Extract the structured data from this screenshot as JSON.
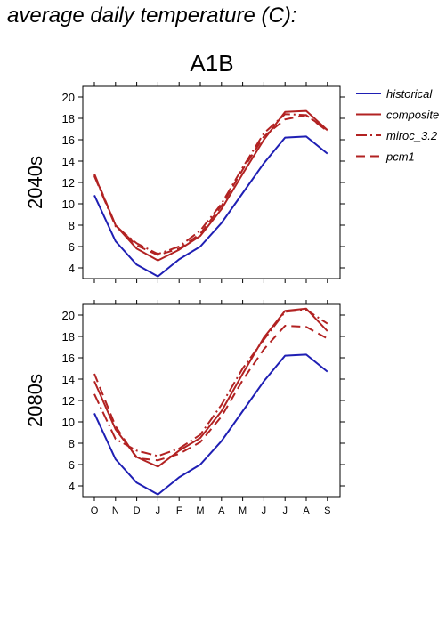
{
  "page": {
    "title": "average daily temperature (C):"
  },
  "chart_data": {
    "type": "line",
    "title": "A1B",
    "categories": [
      "O",
      "N",
      "D",
      "J",
      "F",
      "M",
      "A",
      "M",
      "J",
      "J",
      "A",
      "S"
    ],
    "ylim": [
      3,
      21
    ],
    "yticks": [
      4,
      6,
      8,
      10,
      12,
      14,
      16,
      18,
      20
    ],
    "legend": {
      "placement": "right",
      "entries": [
        {
          "name": "historical",
          "color": "#1f1fb4",
          "dash": "solid"
        },
        {
          "name": "composite",
          "color": "#b22222",
          "dash": "solid"
        },
        {
          "name": "miroc_3.2",
          "color": "#b22222",
          "dash": "dashdot"
        },
        {
          "name": "pcm1",
          "color": "#b22222",
          "dash": "dash"
        }
      ]
    },
    "panels": [
      {
        "label": "2040s",
        "series": [
          {
            "name": "historical",
            "values": [
              10.8,
              6.5,
              4.3,
              3.2,
              4.8,
              6.0,
              8.2,
              11.0,
              13.8,
              16.2,
              16.3,
              14.7
            ]
          },
          {
            "name": "composite",
            "values": [
              12.7,
              8.0,
              5.8,
              4.7,
              5.7,
              7.0,
              9.5,
              12.8,
              16.0,
              18.6,
              18.7,
              16.9
            ]
          },
          {
            "name": "miroc_3.2",
            "values": [
              12.6,
              7.9,
              6.3,
              5.3,
              6.0,
              7.5,
              10.0,
              13.4,
              16.6,
              18.4,
              18.3,
              16.8
            ]
          },
          {
            "name": "pcm1",
            "values": [
              12.8,
              8.0,
              6.1,
              5.2,
              5.8,
              7.2,
              9.8,
              13.2,
              16.3,
              17.9,
              18.3,
              16.9
            ]
          }
        ]
      },
      {
        "label": "2080s",
        "series": [
          {
            "name": "historical",
            "values": [
              10.8,
              6.5,
              4.3,
              3.2,
              4.8,
              6.0,
              8.2,
              11.0,
              13.8,
              16.2,
              16.3,
              14.7
            ]
          },
          {
            "name": "composite",
            "values": [
              13.8,
              9.3,
              6.7,
              5.8,
              7.3,
              8.5,
              11.0,
              14.5,
              17.9,
              20.4,
              20.6,
              18.5
            ]
          },
          {
            "name": "miroc_3.2",
            "values": [
              12.6,
              8.4,
              7.3,
              6.8,
              7.5,
              8.8,
              11.6,
              15.0,
              17.7,
              20.3,
              20.5,
              19.2
            ]
          },
          {
            "name": "pcm1",
            "values": [
              14.5,
              9.6,
              6.6,
              6.4,
              7.0,
              8.1,
              10.5,
              13.9,
              16.8,
              19.0,
              18.9,
              17.8
            ]
          }
        ]
      }
    ]
  }
}
